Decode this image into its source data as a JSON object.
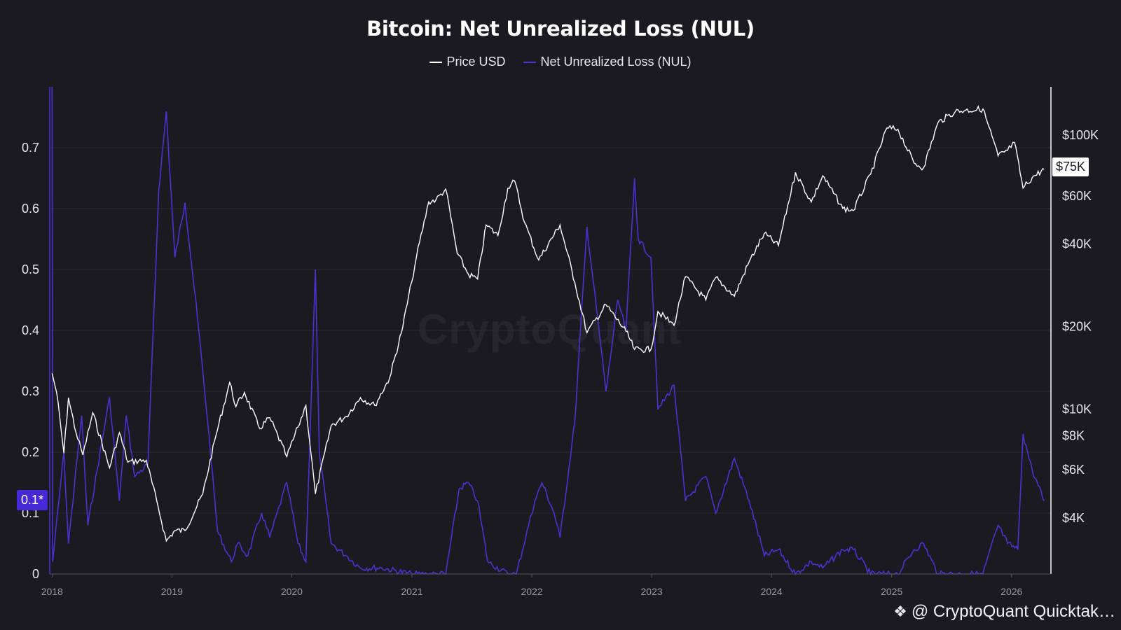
{
  "chart_data": {
    "type": "line",
    "title": "Bitcoin: Net Unrealized Loss (NUL)",
    "legend": [
      "Price USD",
      "Net Unrealized Loss (NUL)"
    ],
    "legend_placement": "top-center",
    "grid": true,
    "x_ticks": [
      "2018",
      "2019",
      "2020",
      "2021",
      "2022",
      "2023",
      "2024",
      "2025",
      "2026"
    ],
    "left_axis": {
      "ticks": [
        "0",
        "0.1",
        "0.2",
        "0.3",
        "0.4",
        "0.5",
        "0.6",
        "0.7"
      ],
      "range": [
        0,
        0.8
      ]
    },
    "right_axis": {
      "scale": "log",
      "ticks": [
        "$4K",
        "$6K",
        "$8K",
        "$10K",
        "$20K",
        "$40K",
        "$60K",
        "$100K"
      ],
      "tick_values": [
        4000,
        6000,
        8000,
        10000,
        20000,
        40000,
        60000,
        100000
      ],
      "range": [
        2500,
        150000
      ]
    },
    "current_nul_label": "0.1*",
    "current_price_label": "$75K",
    "series": [
      {
        "name": "Price USD",
        "axis": "right",
        "color": "#ffffff",
        "points": [
          [
            "2018-01-01",
            13500
          ],
          [
            "2018-01-15",
            11500
          ],
          [
            "2018-02-06",
            6900
          ],
          [
            "2018-02-20",
            11000
          ],
          [
            "2018-03-15",
            8200
          ],
          [
            "2018-04-05",
            6800
          ],
          [
            "2018-05-05",
            9700
          ],
          [
            "2018-06-25",
            6100
          ],
          [
            "2018-07-25",
            8200
          ],
          [
            "2018-08-20",
            6400
          ],
          [
            "2018-10-15",
            6500
          ],
          [
            "2018-11-20",
            4400
          ],
          [
            "2018-12-15",
            3300
          ],
          [
            "2019-01-10",
            3600
          ],
          [
            "2019-02-10",
            3600
          ],
          [
            "2019-04-05",
            4900
          ],
          [
            "2019-05-15",
            8000
          ],
          [
            "2019-06-26",
            12500
          ],
          [
            "2019-07-15",
            10200
          ],
          [
            "2019-08-10",
            11500
          ],
          [
            "2019-09-25",
            8500
          ],
          [
            "2019-10-26",
            9300
          ],
          [
            "2019-12-17",
            6700
          ],
          [
            "2020-01-20",
            8600
          ],
          [
            "2020-02-13",
            10300
          ],
          [
            "2020-03-13",
            4900
          ],
          [
            "2020-04-30",
            8700
          ],
          [
            "2020-06-15",
            9400
          ],
          [
            "2020-07-28",
            11000
          ],
          [
            "2020-09-10",
            10300
          ],
          [
            "2020-10-25",
            13000
          ],
          [
            "2020-11-30",
            19000
          ],
          [
            "2020-12-31",
            29000
          ],
          [
            "2021-01-15",
            36000
          ],
          [
            "2021-02-21",
            57000
          ],
          [
            "2021-03-15",
            58000
          ],
          [
            "2021-04-14",
            63500
          ],
          [
            "2021-05-19",
            37000
          ],
          [
            "2021-06-22",
            31000
          ],
          [
            "2021-07-20",
            29800
          ],
          [
            "2021-08-15",
            47000
          ],
          [
            "2021-09-20",
            43000
          ],
          [
            "2021-10-20",
            64000
          ],
          [
            "2021-11-10",
            68000
          ],
          [
            "2021-12-10",
            48000
          ],
          [
            "2022-01-22",
            35000
          ],
          [
            "2022-03-28",
            47000
          ],
          [
            "2022-05-12",
            29000
          ],
          [
            "2022-06-18",
            19000
          ],
          [
            "2022-08-15",
            24000
          ],
          [
            "2022-10-15",
            19200
          ],
          [
            "2022-11-10",
            16500
          ],
          [
            "2022-12-30",
            16500
          ],
          [
            "2023-01-20",
            22700
          ],
          [
            "2023-03-10",
            20200
          ],
          [
            "2023-04-14",
            30400
          ],
          [
            "2023-06-15",
            25000
          ],
          [
            "2023-07-15",
            30200
          ],
          [
            "2023-09-10",
            25800
          ],
          [
            "2023-10-25",
            34500
          ],
          [
            "2023-12-10",
            43700
          ],
          [
            "2024-01-22",
            39500
          ],
          [
            "2024-03-14",
            73000
          ],
          [
            "2024-05-01",
            57000
          ],
          [
            "2024-06-05",
            71000
          ],
          [
            "2024-08-05",
            54000
          ],
          [
            "2024-09-06",
            53000
          ],
          [
            "2024-10-29",
            72000
          ],
          [
            "2024-12-17",
            106000
          ],
          [
            "2025-01-20",
            105000
          ],
          [
            "2025-03-10",
            79000
          ],
          [
            "2025-04-08",
            76000
          ],
          [
            "2025-05-22",
            111000
          ],
          [
            "2025-07-14",
            122000
          ],
          [
            "2025-08-14",
            123000
          ],
          [
            "2025-10-06",
            124500
          ],
          [
            "2025-11-21",
            84000
          ],
          [
            "2025-12-20",
            88000
          ],
          [
            "2026-01-10",
            94000
          ],
          [
            "2026-02-05",
            64000
          ],
          [
            "2026-03-05",
            70000
          ],
          [
            "2026-04-10",
            75000
          ]
        ]
      },
      {
        "name": "Net Unrealized Loss (NUL)",
        "axis": "left",
        "color": "#4a32d0",
        "points": [
          [
            "2018-01-01",
            0.8
          ],
          [
            "2018-01-03",
            0.02
          ],
          [
            "2018-02-06",
            0.2
          ],
          [
            "2018-02-20",
            0.05
          ],
          [
            "2018-04-01",
            0.26
          ],
          [
            "2018-04-20",
            0.08
          ],
          [
            "2018-06-25",
            0.29
          ],
          [
            "2018-07-25",
            0.12
          ],
          [
            "2018-08-15",
            0.26
          ],
          [
            "2018-09-10",
            0.16
          ],
          [
            "2018-10-20",
            0.18
          ],
          [
            "2018-11-22",
            0.63
          ],
          [
            "2018-12-15",
            0.76
          ],
          [
            "2019-01-10",
            0.52
          ],
          [
            "2019-02-10",
            0.61
          ],
          [
            "2019-03-20",
            0.42
          ],
          [
            "2019-04-20",
            0.25
          ],
          [
            "2019-05-20",
            0.07
          ],
          [
            "2019-07-01",
            0.02
          ],
          [
            "2019-07-20",
            0.05
          ],
          [
            "2019-08-20",
            0.03
          ],
          [
            "2019-10-01",
            0.1
          ],
          [
            "2019-10-26",
            0.06
          ],
          [
            "2019-12-17",
            0.15
          ],
          [
            "2020-01-20",
            0.05
          ],
          [
            "2020-02-13",
            0.02
          ],
          [
            "2020-03-13",
            0.5
          ],
          [
            "2020-03-25",
            0.2
          ],
          [
            "2020-04-30",
            0.05
          ],
          [
            "2020-06-15",
            0.03
          ],
          [
            "2020-07-28",
            0.01
          ],
          [
            "2020-10-01",
            0.01
          ],
          [
            "2020-12-31",
            0.0
          ],
          [
            "2021-04-14",
            0.0
          ],
          [
            "2021-05-25",
            0.14
          ],
          [
            "2021-06-22",
            0.15
          ],
          [
            "2021-07-20",
            0.12
          ],
          [
            "2021-08-20",
            0.02
          ],
          [
            "2021-10-20",
            0.0
          ],
          [
            "2021-11-15",
            0.0
          ],
          [
            "2022-01-10",
            0.12
          ],
          [
            "2022-02-01",
            0.15
          ],
          [
            "2022-03-10",
            0.1
          ],
          [
            "2022-03-28",
            0.06
          ],
          [
            "2022-05-12",
            0.25
          ],
          [
            "2022-06-18",
            0.57
          ],
          [
            "2022-08-15",
            0.3
          ],
          [
            "2022-09-20",
            0.45
          ],
          [
            "2022-10-15",
            0.4
          ],
          [
            "2022-11-10",
            0.65
          ],
          [
            "2022-11-21",
            0.55
          ],
          [
            "2022-12-30",
            0.52
          ],
          [
            "2023-01-20",
            0.27
          ],
          [
            "2023-03-10",
            0.31
          ],
          [
            "2023-04-14",
            0.12
          ],
          [
            "2023-06-15",
            0.16
          ],
          [
            "2023-07-15",
            0.1
          ],
          [
            "2023-09-10",
            0.19
          ],
          [
            "2023-10-25",
            0.12
          ],
          [
            "2023-12-10",
            0.03
          ],
          [
            "2024-01-22",
            0.04
          ],
          [
            "2024-03-14",
            0.0
          ],
          [
            "2024-05-01",
            0.02
          ],
          [
            "2024-06-05",
            0.01
          ],
          [
            "2024-08-05",
            0.04
          ],
          [
            "2024-09-06",
            0.04
          ],
          [
            "2024-10-29",
            0.0
          ],
          [
            "2024-12-17",
            0.0
          ],
          [
            "2025-01-20",
            0.0
          ],
          [
            "2025-03-10",
            0.04
          ],
          [
            "2025-04-08",
            0.05
          ],
          [
            "2025-05-22",
            0.0
          ],
          [
            "2025-08-14",
            0.0
          ],
          [
            "2025-10-06",
            0.0
          ],
          [
            "2025-11-21",
            0.08
          ],
          [
            "2025-12-20",
            0.05
          ],
          [
            "2026-01-20",
            0.04
          ],
          [
            "2026-02-05",
            0.23
          ],
          [
            "2026-03-05",
            0.17
          ],
          [
            "2026-04-10",
            0.12
          ]
        ]
      }
    ]
  },
  "watermark": "CryptoQuant",
  "credit": "@ CryptoQuant Quicktak…"
}
